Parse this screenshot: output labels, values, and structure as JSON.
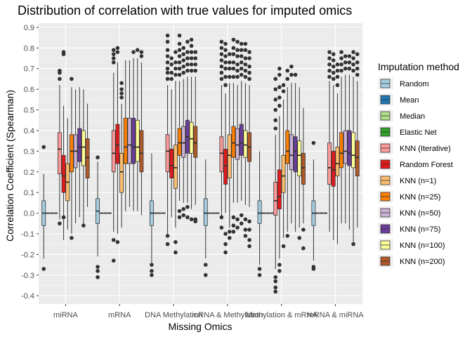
{
  "chart_data": {
    "type": "box",
    "title": "Distribution of correlation with true values for imputed omics",
    "xlabel": "Missing Omics",
    "ylabel": "Correlation Coefficient (Spearman)",
    "ylim": [
      -0.44,
      0.92
    ],
    "yticks": [
      "-0.4",
      "-0.3",
      "-0.2",
      "-0.1",
      "0.0",
      "0.1",
      "0.2",
      "0.3",
      "0.4",
      "0.5",
      "0.6",
      "0.7",
      "0.8",
      "0.9"
    ],
    "categories": [
      "miRNA",
      "mRNA",
      "DNA Methylation",
      "mRNA & Methylation",
      "Methylation & mRNA",
      "mRNA & miRNA"
    ],
    "legend": {
      "title": "Imputation method",
      "position": "right"
    },
    "grid": true,
    "series": [
      {
        "name": "Random",
        "color": "#a6cee3"
      },
      {
        "name": "Mean",
        "color": "#1f78b4"
      },
      {
        "name": "Median",
        "color": "#b2df8a"
      },
      {
        "name": "Elastic Net",
        "color": "#33a02c"
      },
      {
        "name": "KNN (Iterative)",
        "color": "#fb9a99"
      },
      {
        "name": "Random Forest",
        "color": "#e31a1c"
      },
      {
        "name": "KNN (n=1)",
        "color": "#fdbf6f"
      },
      {
        "name": "KNN (n=25)",
        "color": "#ff7f00"
      },
      {
        "name": "KNN (n=50)",
        "color": "#cab2d6"
      },
      {
        "name": "KNN (n=75)",
        "color": "#6a3d9a"
      },
      {
        "name": "KNN (n=100)",
        "color": "#ffff99"
      },
      {
        "name": "KNN (n=200)",
        "color": "#b15928"
      }
    ],
    "boxes": [
      [
        {
          "low": -0.22,
          "q1": -0.06,
          "median": 0.0,
          "q3": 0.06,
          "high": 0.19,
          "out": [
            0.32,
            -0.27
          ]
        },
        {
          "low": 0,
          "q1": 0,
          "median": 0,
          "q3": 0,
          "high": 0,
          "out": []
        },
        {
          "low": 0,
          "q1": 0,
          "median": 0,
          "q3": 0,
          "high": 0,
          "out": []
        },
        {
          "low": 0,
          "q1": 0,
          "median": 0,
          "q3": 0,
          "high": 0,
          "out": []
        },
        {
          "low": -0.03,
          "q1": 0.19,
          "median": 0.31,
          "q3": 0.39,
          "high": 0.62,
          "out": [
            0.69,
            0.68,
            0.65,
            -0.05
          ]
        },
        {
          "low": -0.13,
          "q1": 0.1,
          "median": 0.18,
          "q3": 0.28,
          "high": 0.52,
          "out": [
            0.78,
            0.77,
            -0.02
          ]
        },
        {
          "low": -0.08,
          "q1": 0.06,
          "median": 0.15,
          "q3": 0.24,
          "high": 0.46,
          "out": []
        },
        {
          "low": -0.1,
          "q1": 0.2,
          "median": 0.3,
          "q3": 0.38,
          "high": 0.61,
          "out": [
            0.65,
            -0.12
          ]
        },
        {
          "low": -0.05,
          "q1": 0.22,
          "median": 0.3,
          "q3": 0.38,
          "high": 0.6,
          "out": []
        },
        {
          "low": -0.02,
          "q1": 0.25,
          "median": 0.32,
          "q3": 0.41,
          "high": 0.61,
          "out": []
        },
        {
          "low": -0.05,
          "q1": 0.23,
          "median": 0.32,
          "q3": 0.4,
          "high": 0.6,
          "out": [
            -0.06
          ]
        },
        {
          "low": 0.03,
          "q1": 0.17,
          "median": 0.27,
          "q3": 0.36,
          "high": 0.53,
          "out": []
        }
      ],
      [
        {
          "low": -0.21,
          "q1": -0.05,
          "median": 0.01,
          "q3": 0.07,
          "high": 0.25,
          "out": [
            0.27,
            -0.26,
            -0.28,
            -0.31
          ]
        },
        {
          "low": 0,
          "q1": 0,
          "median": 0,
          "q3": 0,
          "high": 0,
          "out": []
        },
        {
          "low": 0,
          "q1": 0,
          "median": 0,
          "q3": 0,
          "high": 0,
          "out": []
        },
        {
          "low": 0,
          "q1": 0,
          "median": 0,
          "q3": 0,
          "high": 0,
          "out": []
        },
        {
          "low": -0.09,
          "q1": 0.2,
          "median": 0.29,
          "q3": 0.4,
          "high": 0.68,
          "out": [
            0.73,
            0.75,
            0.77,
            0.79,
            -0.13,
            -0.23
          ]
        },
        {
          "low": -0.1,
          "q1": 0.24,
          "median": 0.33,
          "q3": 0.43,
          "high": 0.73,
          "out": [
            0.78,
            0.8,
            -0.14
          ]
        },
        {
          "low": -0.07,
          "q1": 0.1,
          "median": 0.2,
          "q3": 0.29,
          "high": 0.53,
          "out": [
            0.56,
            0.58,
            0.6,
            0.63
          ]
        },
        {
          "low": 0.01,
          "q1": 0.24,
          "median": 0.32,
          "q3": 0.46,
          "high": 0.74,
          "out": []
        },
        {
          "low": 0.03,
          "q1": 0.24,
          "median": 0.33,
          "q3": 0.46,
          "high": 0.74,
          "out": []
        },
        {
          "low": 0.01,
          "q1": 0.24,
          "median": 0.32,
          "q3": 0.46,
          "high": 0.75,
          "out": [
            0.78
          ]
        },
        {
          "low": 0.01,
          "q1": 0.25,
          "median": 0.32,
          "q3": 0.45,
          "high": 0.75,
          "out": [
            0.79
          ]
        },
        {
          "low": -0.01,
          "q1": 0.2,
          "median": 0.29,
          "q3": 0.4,
          "high": 0.73,
          "out": [
            0.76,
            0.78
          ]
        }
      ],
      [
        {
          "low": -0.24,
          "q1": -0.06,
          "median": 0.0,
          "q3": 0.06,
          "high": 0.29,
          "out": [
            -0.25,
            -0.28,
            -0.3
          ]
        },
        {
          "low": 0,
          "q1": 0,
          "median": 0,
          "q3": 0,
          "high": 0,
          "out": []
        },
        {
          "low": 0,
          "q1": 0,
          "median": 0,
          "q3": 0,
          "high": 0,
          "out": []
        },
        {
          "low": 0,
          "q1": 0,
          "median": 0,
          "q3": 0,
          "high": 0,
          "out": []
        },
        {
          "low": -0.1,
          "q1": 0.2,
          "median": 0.3,
          "q3": 0.38,
          "high": 0.62,
          "out": [
            0.65,
            0.68,
            0.7,
            0.73,
            0.76,
            0.79,
            0.83,
            0.86,
            -0.11,
            -0.15
          ]
        },
        {
          "low": -0.02,
          "q1": 0.17,
          "median": 0.23,
          "q3": 0.31,
          "high": 0.6,
          "out": [
            0.65,
            0.68,
            0.72,
            0.75
          ]
        },
        {
          "low": -0.07,
          "q1": 0.12,
          "median": 0.22,
          "q3": 0.33,
          "high": 0.64,
          "out": [
            0.67,
            0.7,
            0.73,
            0.78,
            -0.14,
            -0.19
          ]
        },
        {
          "low": 0.06,
          "q1": 0.28,
          "median": 0.34,
          "q3": 0.41,
          "high": 0.64,
          "out": [
            0.67,
            0.7,
            0.73,
            0.76,
            0.79,
            0.82,
            0.86,
            -0.02,
            0.01
          ]
        },
        {
          "low": 0.05,
          "q1": 0.27,
          "median": 0.34,
          "q3": 0.42,
          "high": 0.65,
          "out": [
            0.68,
            0.71,
            0.74,
            0.77,
            0.8,
            -0.01,
            0.02
          ]
        },
        {
          "low": 0.05,
          "q1": 0.29,
          "median": 0.37,
          "q3": 0.45,
          "high": 0.66,
          "out": [
            0.69,
            0.72,
            0.75,
            0.78,
            0.83,
            -0.02,
            0.03
          ]
        },
        {
          "low": 0.02,
          "q1": 0.29,
          "median": 0.36,
          "q3": 0.44,
          "high": 0.66,
          "out": [
            0.69,
            0.72,
            0.75,
            0.78,
            0.81,
            0.84,
            -0.03
          ]
        },
        {
          "low": 0.04,
          "q1": 0.27,
          "median": 0.34,
          "q3": 0.42,
          "high": 0.66,
          "out": [
            0.69,
            0.72,
            0.75,
            0.78,
            -0.03,
            -0.04
          ]
        }
      ],
      [
        {
          "low": -0.22,
          "q1": -0.06,
          "median": 0.0,
          "q3": 0.07,
          "high": 0.26,
          "out": [
            -0.25,
            -0.3
          ]
        },
        {
          "low": 0,
          "q1": 0,
          "median": 0,
          "q3": 0,
          "high": 0,
          "out": []
        },
        {
          "low": 0,
          "q1": 0,
          "median": 0,
          "q3": 0,
          "high": 0,
          "out": []
        },
        {
          "low": 0,
          "q1": 0,
          "median": 0,
          "q3": 0,
          "high": 0,
          "out": []
        },
        {
          "low": -0.03,
          "q1": 0.2,
          "median": 0.29,
          "q3": 0.37,
          "high": 0.62,
          "out": [
            0.65,
            0.68,
            0.71,
            0.74,
            0.77,
            0.8,
            0.83,
            -0.02,
            -0.07
          ]
        },
        {
          "low": 0.0,
          "q1": 0.14,
          "median": 0.23,
          "q3": 0.31,
          "high": 0.58,
          "out": [
            0.62,
            0.66,
            0.7,
            0.73,
            0.76,
            0.79,
            0.82,
            -0.1,
            -0.15,
            -0.19
          ]
        },
        {
          "low": -0.07,
          "q1": 0.17,
          "median": 0.28,
          "q3": 0.38,
          "high": 0.63,
          "out": [
            0.66,
            0.7,
            0.73,
            0.77,
            -0.09,
            -0.12
          ]
        },
        {
          "low": 0.05,
          "q1": 0.27,
          "median": 0.34,
          "q3": 0.42,
          "high": 0.63,
          "out": [
            0.66,
            0.7,
            0.73,
            0.77,
            0.8,
            0.84,
            -0.02,
            -0.06,
            -0.09
          ]
        },
        {
          "low": 0.05,
          "q1": 0.26,
          "median": 0.33,
          "q3": 0.41,
          "high": 0.62,
          "out": [
            0.66,
            0.69,
            0.72,
            0.76,
            0.79,
            0.83,
            -0.03,
            -0.07
          ]
        },
        {
          "low": 0.06,
          "q1": 0.28,
          "median": 0.34,
          "q3": 0.43,
          "high": 0.64,
          "out": [
            0.67,
            0.7,
            0.73,
            0.76,
            0.79,
            0.82,
            -0.01,
            -0.05
          ]
        },
        {
          "low": 0.04,
          "q1": 0.27,
          "median": 0.33,
          "q3": 0.4,
          "high": 0.63,
          "out": [
            0.66,
            0.69,
            0.72,
            0.75,
            0.79,
            0.82,
            -0.03,
            -0.08,
            -0.11
          ]
        },
        {
          "low": 0.03,
          "q1": 0.25,
          "median": 0.32,
          "q3": 0.39,
          "high": 0.62,
          "out": [
            0.65,
            0.68,
            0.71,
            0.75,
            0.78,
            -0.04,
            -0.08,
            -0.13,
            -0.16
          ]
        }
      ],
      [
        {
          "low": -0.25,
          "q1": -0.05,
          "median": 0.0,
          "q3": 0.06,
          "high": 0.3,
          "out": [
            -0.27,
            -0.3
          ]
        },
        {
          "low": 0,
          "q1": 0,
          "median": 0,
          "q3": 0,
          "high": 0,
          "out": []
        },
        {
          "low": 0,
          "q1": 0,
          "median": 0,
          "q3": 0,
          "high": 0,
          "out": []
        },
        {
          "low": 0,
          "q1": 0,
          "median": 0,
          "q3": 0,
          "high": 0,
          "out": []
        },
        {
          "low": -0.27,
          "q1": -0.01,
          "median": 0.06,
          "q3": 0.15,
          "high": 0.38,
          "out": [
            0.41,
            0.45,
            0.5,
            0.55,
            0.6,
            0.65,
            -0.31,
            -0.33,
            -0.36,
            -0.38
          ]
        },
        {
          "low": -0.22,
          "q1": 0.02,
          "median": 0.08,
          "q3": 0.21,
          "high": 0.47,
          "out": [
            0.52,
            0.56,
            0.61,
            0.67,
            0.7,
            -0.25,
            -0.28
          ]
        },
        {
          "low": -0.12,
          "q1": 0.1,
          "median": 0.18,
          "q3": 0.28,
          "high": 0.55,
          "out": [
            0.59,
            0.62,
            -0.16
          ]
        },
        {
          "low": -0.09,
          "q1": 0.24,
          "median": 0.3,
          "q3": 0.4,
          "high": 0.61,
          "out": [
            0.65,
            0.69,
            -0.11
          ]
        },
        {
          "low": -0.05,
          "q1": 0.21,
          "median": 0.28,
          "q3": 0.38,
          "high": 0.63,
          "out": [
            0.67,
            0.71
          ]
        },
        {
          "low": -0.09,
          "q1": 0.2,
          "median": 0.3,
          "q3": 0.37,
          "high": 0.63,
          "out": [
            0.67
          ]
        },
        {
          "low": -0.07,
          "q1": 0.18,
          "median": 0.28,
          "q3": 0.35,
          "high": 0.61,
          "out": [
            -0.12
          ]
        },
        {
          "low": -0.05,
          "q1": 0.14,
          "median": 0.22,
          "q3": 0.29,
          "high": 0.51,
          "out": [
            -0.08,
            -0.17
          ]
        }
      ],
      [
        {
          "low": -0.23,
          "q1": -0.06,
          "median": 0.0,
          "q3": 0.06,
          "high": 0.26,
          "out": [
            0.34,
            -0.26,
            -0.27
          ]
        },
        {
          "low": 0,
          "q1": 0,
          "median": 0,
          "q3": 0,
          "high": 0,
          "out": []
        },
        {
          "low": 0,
          "q1": 0,
          "median": 0,
          "q3": 0,
          "high": 0,
          "out": []
        },
        {
          "low": 0,
          "q1": 0,
          "median": 0,
          "q3": 0,
          "high": 0,
          "out": []
        },
        {
          "low": -0.09,
          "q1": 0.14,
          "median": 0.22,
          "q3": 0.34,
          "high": 0.64,
          "out": [
            0.66,
            0.69,
            0.72,
            0.75,
            0.78
          ]
        },
        {
          "low": -0.13,
          "q1": 0.13,
          "median": 0.21,
          "q3": 0.3,
          "high": 0.62,
          "out": [
            0.65,
            0.68,
            0.71,
            0.74,
            0.77
          ]
        },
        {
          "low": -0.15,
          "q1": 0.18,
          "median": 0.24,
          "q3": 0.32,
          "high": 0.58,
          "out": [
            0.62,
            0.66,
            0.69,
            0.72
          ]
        },
        {
          "low": -0.05,
          "q1": 0.22,
          "median": 0.29,
          "q3": 0.39,
          "high": 0.66,
          "out": [
            0.69,
            0.72,
            0.75,
            0.78
          ]
        },
        {
          "low": -0.05,
          "q1": 0.24,
          "median": 0.3,
          "q3": 0.4,
          "high": 0.67,
          "out": [
            0.7,
            0.73,
            0.76
          ]
        },
        {
          "low": -0.08,
          "q1": 0.23,
          "median": 0.29,
          "q3": 0.4,
          "high": 0.67,
          "out": [
            0.7,
            0.73,
            0.76
          ]
        },
        {
          "low": -0.14,
          "q1": 0.22,
          "median": 0.28,
          "q3": 0.39,
          "high": 0.66,
          "out": [
            0.69,
            0.72,
            0.75,
            0.78,
            -0.15
          ]
        },
        {
          "low": -0.07,
          "q1": 0.18,
          "median": 0.27,
          "q3": 0.35,
          "high": 0.64,
          "out": [
            0.67,
            0.7,
            0.73,
            0.77
          ]
        }
      ]
    ]
  }
}
